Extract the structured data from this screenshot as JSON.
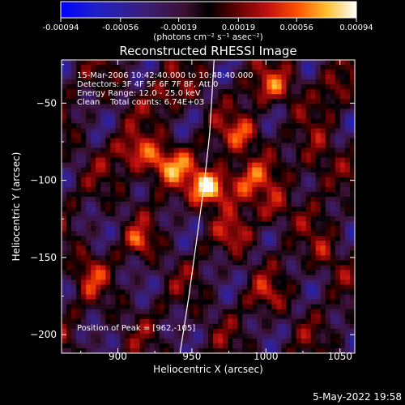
{
  "chart_data": {
    "type": "heatmap",
    "title": "Reconstructed RHESSI Image",
    "xlabel": "Heliocentric X (arcsec)",
    "ylabel": "Heliocentric Y (arcsec)",
    "xlim": [
      862,
      1060
    ],
    "ylim": [
      -212,
      -22
    ],
    "x_ticks": [
      900,
      950,
      1000,
      1050
    ],
    "y_ticks": [
      -50,
      -100,
      -150,
      -200
    ],
    "colorbar": {
      "ticks": [
        "-0.00094",
        "-0.00056",
        "-0.00019",
        "0.00019",
        "0.00056",
        "0.00094"
      ],
      "label": "(photons cm⁻² s⁻¹ asec⁻²)",
      "range": [
        -0.00094,
        0.00094
      ]
    },
    "annotations": [
      "15-Mar-2006 10:42:40.000 to 10:48:40.000",
      "Detectors: 3F 4F 5F 6F 7F 8F, Att 0",
      "Energy Range: 12.0 - 25.0 keV",
      "Clean    Total counts: 6.74E+03"
    ],
    "peak_label": "Position of Peak = [962,-105]",
    "peak": [
      962,
      -105
    ],
    "bright_sources": [
      {
        "x": 962,
        "y": -105,
        "amp": 0.00094,
        "sx": 9,
        "sy": 8
      },
      {
        "x": 930,
        "y": -90,
        "amp": 0.0007,
        "sx": 14,
        "sy": 9
      },
      {
        "x": 985,
        "y": -100,
        "amp": 0.00055,
        "sx": 12,
        "sy": 10
      },
      {
        "x": 910,
        "y": -80,
        "amp": 0.00045,
        "sx": 9,
        "sy": 7
      },
      {
        "x": 985,
        "y": -70,
        "amp": 0.0005,
        "sx": 10,
        "sy": 8
      },
      {
        "x": 1005,
        "y": -40,
        "amp": 0.00048,
        "sx": 12,
        "sy": 8
      },
      {
        "x": 1035,
        "y": -90,
        "amp": 0.0004,
        "sx": 8,
        "sy": 12
      },
      {
        "x": 1005,
        "y": -120,
        "amp": 0.0004,
        "sx": 10,
        "sy": 8
      },
      {
        "x": 980,
        "y": -135,
        "amp": 0.00035,
        "sx": 8,
        "sy": 7
      },
      {
        "x": 915,
        "y": -140,
        "amp": 0.0005,
        "sx": 6,
        "sy": 6
      },
      {
        "x": 880,
        "y": -160,
        "amp": 0.0004,
        "sx": 7,
        "sy": 10
      },
      {
        "x": 935,
        "y": -45,
        "amp": 0.00035,
        "sx": 10,
        "sy": 8
      },
      {
        "x": 1000,
        "y": -175,
        "amp": 0.0003,
        "sx": 9,
        "sy": 7
      },
      {
        "x": 1040,
        "y": -150,
        "amp": 0.0003,
        "sx": 8,
        "sy": 10
      },
      {
        "x": 1045,
        "y": -40,
        "amp": 0.00035,
        "sx": 7,
        "sy": 9
      }
    ],
    "limb_curve": [
      [
        942,
        -212
      ],
      [
        948,
        -175
      ],
      [
        953,
        -140
      ],
      [
        958,
        -105
      ],
      [
        962,
        -70
      ],
      [
        965,
        -22
      ]
    ]
  },
  "timestamp": "5-May-2022 19:58"
}
